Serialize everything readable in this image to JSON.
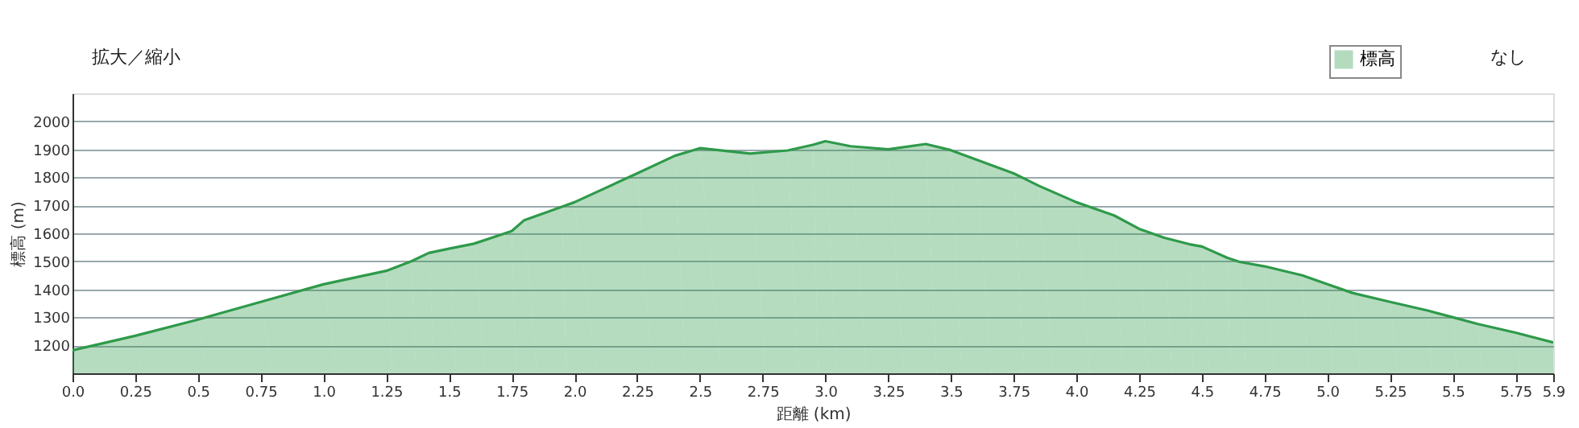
{
  "chart_data": {
    "type": "area",
    "xlabel": "距離 (km)",
    "ylabel": "標高 (m)",
    "annotations": [
      "拡大／縮小",
      "なし"
    ],
    "x": [
      0,
      0.25,
      0.5,
      0.75,
      1.0,
      1.25,
      1.35,
      1.42,
      1.5,
      1.6,
      1.75,
      1.8,
      1.95,
      2.0,
      2.25,
      2.4,
      2.5,
      2.7,
      2.85,
      2.95,
      3.0,
      3.1,
      3.25,
      3.4,
      3.5,
      3.6,
      3.75,
      3.85,
      4.0,
      4.15,
      4.25,
      4.35,
      4.45,
      4.5,
      4.6,
      4.65,
      4.75,
      4.9,
      5.0,
      5.1,
      5.25,
      5.4,
      5.5,
      5.6,
      5.75,
      5.9
    ],
    "series": [
      {
        "name": "標高",
        "color": "#2e9a4a",
        "values": [
          1182,
          1234,
          1292,
          1355,
          1418,
          1466,
          1500,
          1530,
          1545,
          1563,
          1608,
          1647,
          1695,
          1711,
          1814,
          1877,
          1904,
          1885,
          1896,
          1916,
          1929,
          1911,
          1900,
          1919,
          1897,
          1864,
          1814,
          1770,
          1711,
          1664,
          1616,
          1584,
          1561,
          1553,
          1513,
          1498,
          1482,
          1450,
          1418,
          1387,
          1355,
          1324,
          1300,
          1276,
          1245,
          1210
        ]
      }
    ],
    "xlim": [
      0,
      5.9
    ],
    "xticks": [
      {
        "value": 0,
        "label": "0.0"
      },
      0.25,
      0.5,
      0.75,
      {
        "value": 1,
        "label": "1.0"
      },
      1.25,
      1.5,
      1.75,
      {
        "value": 2,
        "label": "2.0"
      },
      2.25,
      2.5,
      2.75,
      {
        "value": 3,
        "label": "3.0"
      },
      3.25,
      3.5,
      3.75,
      {
        "value": 4,
        "label": "4.0"
      },
      4.25,
      4.5,
      4.75,
      {
        "value": 5,
        "label": "5.0"
      },
      5.25,
      5.5,
      5.75,
      5.9
    ],
    "ylim": [
      1100,
      2100
    ],
    "yticks": [
      1200,
      1300,
      1400,
      1500,
      1600,
      1700,
      1800,
      1900,
      2000
    ],
    "grid": "y",
    "legend": "top right"
  }
}
